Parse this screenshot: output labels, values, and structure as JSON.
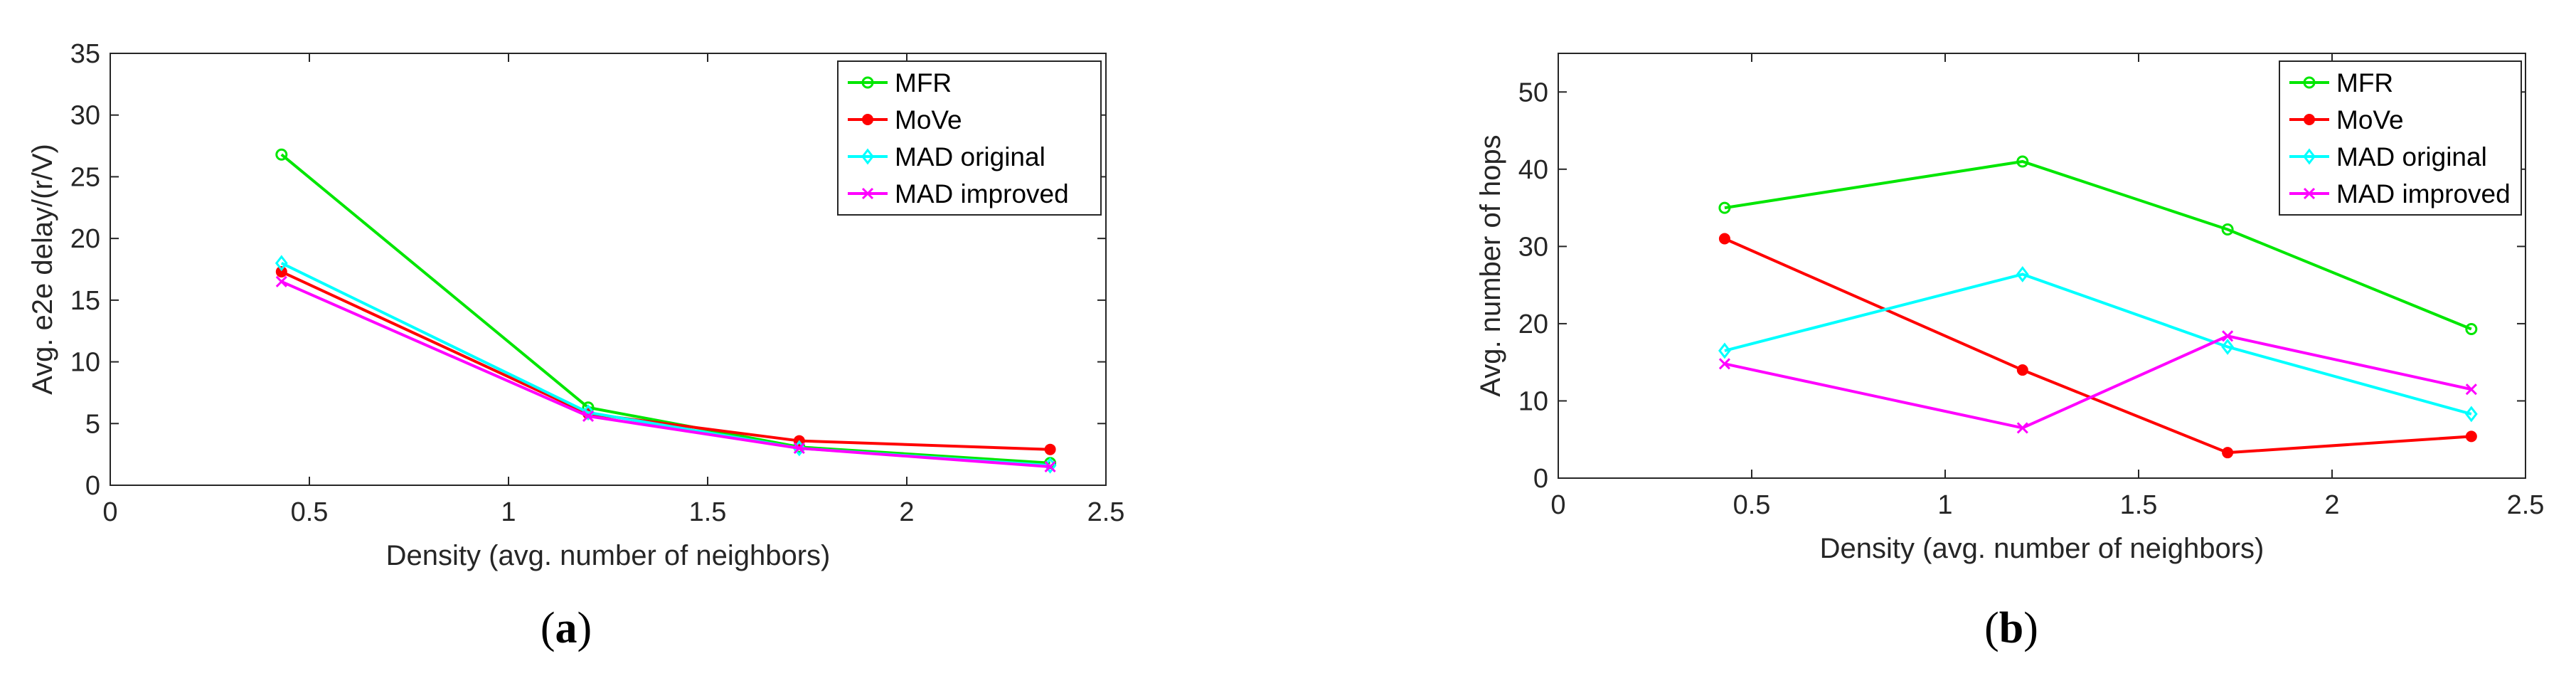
{
  "chart_data": [
    {
      "type": "line",
      "caption_open": "(",
      "caption_letter": "a",
      "caption_close": ")",
      "xlabel": "Density (avg. number of neighbors)",
      "ylabel": "Avg. e2e delay/(r/V)",
      "xlim": [
        0,
        2.5
      ],
      "ylim": [
        0,
        35
      ],
      "xticks": [
        0,
        0.5,
        1,
        1.5,
        2,
        2.5
      ],
      "xtick_labels": [
        "0",
        "0.5",
        "1",
        "1.5",
        "2",
        "2.5"
      ],
      "yticks": [
        0,
        5,
        10,
        15,
        20,
        25,
        30,
        35
      ],
      "ytick_labels": [
        "0",
        "5",
        "10",
        "15",
        "20",
        "25",
        "30",
        "35"
      ],
      "grid": false,
      "legend_position": "top-right",
      "x": [
        0.43,
        1.2,
        1.73,
        2.36
      ],
      "series": [
        {
          "name": "MFR",
          "color": "#00e600",
          "marker": "circle",
          "values": [
            26.8,
            6.3,
            3.1,
            1.8
          ]
        },
        {
          "name": "MoVe",
          "color": "#ff0000",
          "marker": "dot",
          "values": [
            17.3,
            5.8,
            3.6,
            2.9
          ]
        },
        {
          "name": "MAD original",
          "color": "#00ffff",
          "marker": "diamond",
          "values": [
            18.0,
            5.9,
            3.0,
            1.6
          ]
        },
        {
          "name": "MAD improved",
          "color": "#ff00ff",
          "marker": "x",
          "values": [
            16.5,
            5.6,
            3.0,
            1.5
          ]
        }
      ]
    },
    {
      "type": "line",
      "caption_open": "(",
      "caption_letter": "b",
      "caption_close": ")",
      "xlabel": "Density (avg. number of neighbors)",
      "ylabel": "Avg. number of hops",
      "xlim": [
        0,
        2.5
      ],
      "ylim": [
        0,
        55
      ],
      "xticks": [
        0,
        0.5,
        1,
        1.5,
        2,
        2.5
      ],
      "xtick_labels": [
        "0",
        "0.5",
        "1",
        "1.5",
        "2",
        "2.5"
      ],
      "yticks": [
        0,
        10,
        20,
        30,
        40,
        50
      ],
      "ytick_labels": [
        "0",
        "10",
        "20",
        "30",
        "40",
        "50"
      ],
      "grid": false,
      "legend_position": "top-right",
      "x": [
        0.43,
        1.2,
        1.73,
        2.36
      ],
      "series": [
        {
          "name": "MFR",
          "color": "#00e600",
          "marker": "circle",
          "values": [
            35.0,
            41.0,
            32.2,
            19.3
          ]
        },
        {
          "name": "MoVe",
          "color": "#ff0000",
          "marker": "dot",
          "values": [
            31.0,
            14.0,
            3.3,
            5.4
          ]
        },
        {
          "name": "MAD original",
          "color": "#00ffff",
          "marker": "diamond",
          "values": [
            16.5,
            26.4,
            17.0,
            8.3
          ]
        },
        {
          "name": "MAD improved",
          "color": "#ff00ff",
          "marker": "x",
          "values": [
            14.8,
            6.5,
            18.4,
            11.5
          ]
        }
      ]
    }
  ]
}
